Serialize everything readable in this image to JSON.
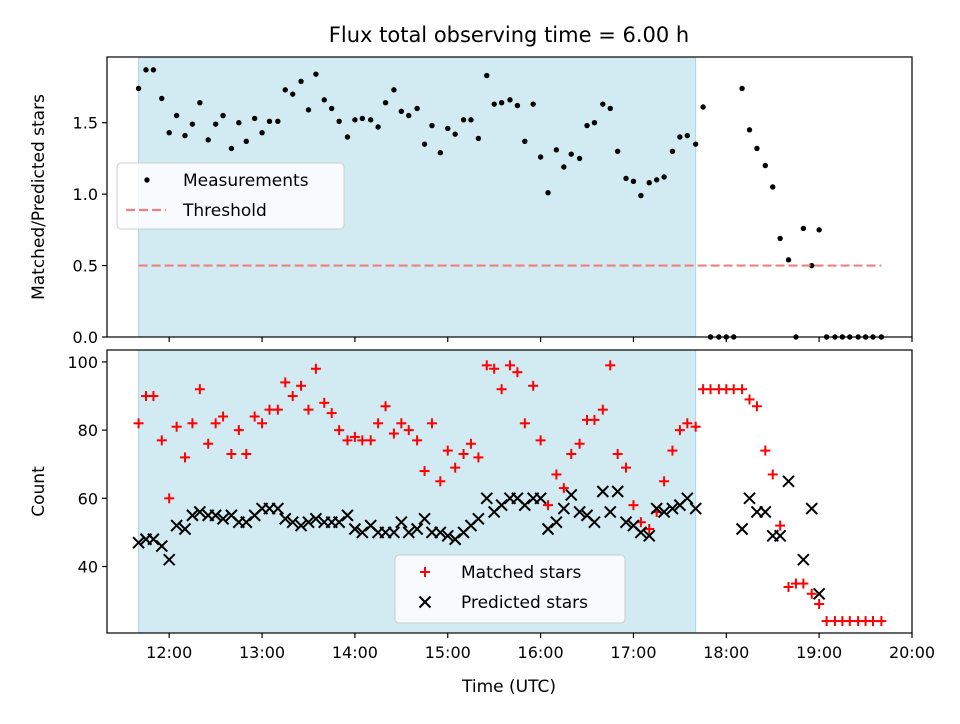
{
  "chart_data": {
    "title": "Flux total observing time = 6.00 h",
    "xlabel": "Time (UTC)",
    "x_unit": "hours UTC",
    "xlim": [
      11.33,
      20.0
    ],
    "xticks": [
      "12:00",
      "13:00",
      "14:00",
      "15:00",
      "16:00",
      "17:00",
      "18:00",
      "19:00",
      "20:00"
    ],
    "xtick_values": [
      12,
      13,
      14,
      15,
      16,
      17,
      18,
      19,
      20
    ],
    "shaded_span": [
      11.67,
      17.67
    ],
    "shade_color": "#add8e6",
    "panels": [
      {
        "type": "scatter",
        "ylabel": "Matched/Predicted stars",
        "ylim": [
          0,
          1.96
        ],
        "yticks": [
          "0.0",
          "0.5",
          "1.0",
          "1.5"
        ],
        "ytick_values": [
          0,
          0.5,
          1.0,
          1.5
        ],
        "legend_placement": "center-left",
        "series": [
          {
            "name": "Measurements",
            "marker": "dot",
            "color": "#000000",
            "x": [
              11.67,
              11.75,
              11.83,
              11.92,
              12.0,
              12.08,
              12.17,
              12.25,
              12.33,
              12.42,
              12.5,
              12.58,
              12.67,
              12.75,
              12.83,
              12.92,
              13.0,
              13.08,
              13.17,
              13.25,
              13.33,
              13.42,
              13.5,
              13.58,
              13.67,
              13.75,
              13.83,
              13.92,
              14.0,
              14.08,
              14.17,
              14.25,
              14.33,
              14.42,
              14.5,
              14.58,
              14.67,
              14.75,
              14.83,
              14.92,
              15.0,
              15.08,
              15.17,
              15.25,
              15.33,
              15.42,
              15.5,
              15.58,
              15.67,
              15.75,
              15.83,
              15.92,
              16.0,
              16.08,
              16.17,
              16.25,
              16.33,
              16.42,
              16.5,
              16.58,
              16.67,
              16.75,
              16.83,
              16.92,
              17.0,
              17.08,
              17.17,
              17.25,
              17.33,
              17.42,
              17.5,
              17.58,
              17.67,
              17.75,
              17.83,
              17.92,
              18.0,
              18.08,
              18.17,
              18.25,
              18.33,
              18.42,
              18.5,
              18.58,
              18.67,
              18.75,
              18.83,
              18.92,
              19.0,
              19.08,
              19.17,
              19.25,
              19.33,
              19.42,
              19.5,
              19.58,
              19.67
            ],
            "y": [
              1.74,
              1.87,
              1.87,
              1.67,
              1.43,
              1.55,
              1.41,
              1.49,
              1.64,
              1.38,
              1.49,
              1.55,
              1.32,
              1.5,
              1.37,
              1.53,
              1.43,
              1.51,
              1.51,
              1.73,
              1.7,
              1.79,
              1.59,
              1.84,
              1.66,
              1.6,
              1.51,
              1.4,
              1.52,
              1.53,
              1.52,
              1.47,
              1.64,
              1.73,
              1.58,
              1.55,
              1.6,
              1.35,
              1.48,
              1.29,
              1.46,
              1.42,
              1.52,
              1.52,
              1.39,
              1.83,
              1.63,
              1.64,
              1.66,
              1.62,
              1.37,
              1.63,
              1.26,
              1.01,
              1.31,
              1.19,
              1.28,
              1.25,
              1.48,
              1.5,
              1.63,
              1.6,
              1.3,
              1.11,
              1.09,
              0.99,
              1.08,
              1.1,
              1.12,
              1.3,
              1.4,
              1.41,
              1.35,
              1.61,
              0,
              0,
              0,
              0,
              1.74,
              1.45,
              1.32,
              1.2,
              1.05,
              0.69,
              0.54,
              0,
              0.76,
              0.5,
              0.75,
              0,
              0,
              0,
              0,
              0,
              0,
              0,
              0
            ]
          },
          {
            "name": "Threshold",
            "marker": "dashed-line",
            "color": "#f08080",
            "x": [
              11.67,
              19.67
            ],
            "y": [
              0.5,
              0.5
            ]
          }
        ]
      },
      {
        "type": "scatter",
        "ylabel": "Count",
        "ylim": [
          20.5,
          103.5
        ],
        "yticks": [
          "40",
          "60",
          "80",
          "100"
        ],
        "ytick_values": [
          40,
          60,
          80,
          100
        ],
        "legend_placement": "bottom-center",
        "series": [
          {
            "name": "Matched stars",
            "marker": "plus",
            "color": "#ff0000",
            "x": [
              11.67,
              11.75,
              11.83,
              11.92,
              12.0,
              12.08,
              12.17,
              12.25,
              12.33,
              12.42,
              12.5,
              12.58,
              12.67,
              12.75,
              12.83,
              12.92,
              13.0,
              13.08,
              13.17,
              13.25,
              13.33,
              13.42,
              13.5,
              13.58,
              13.67,
              13.75,
              13.83,
              13.92,
              14.0,
              14.08,
              14.17,
              14.25,
              14.33,
              14.42,
              14.5,
              14.58,
              14.67,
              14.75,
              14.83,
              14.92,
              15.0,
              15.08,
              15.17,
              15.25,
              15.33,
              15.42,
              15.5,
              15.58,
              15.67,
              15.75,
              15.83,
              15.92,
              16.0,
              16.08,
              16.17,
              16.25,
              16.33,
              16.42,
              16.5,
              16.58,
              16.67,
              16.75,
              16.83,
              16.92,
              17.0,
              17.08,
              17.17,
              17.25,
              17.33,
              17.42,
              17.5,
              17.58,
              17.67,
              17.75,
              17.83,
              17.92,
              18.0,
              18.08,
              18.17,
              18.25,
              18.33,
              18.42,
              18.5,
              18.58,
              18.67,
              18.75,
              18.83,
              18.92,
              19.0,
              19.08,
              19.17,
              19.25,
              19.33,
              19.42,
              19.5,
              19.58,
              19.67
            ],
            "y": [
              82,
              90,
              90,
              77,
              60,
              81,
              72,
              82,
              92,
              76,
              82,
              84,
              73,
              80,
              73,
              84,
              82,
              86,
              86,
              94,
              90,
              93,
              86,
              98,
              88,
              85,
              80,
              77,
              78,
              77,
              77,
              82,
              87,
              79,
              82,
              80,
              77,
              68,
              82,
              65,
              74,
              69,
              73,
              76,
              72,
              99,
              98,
              92,
              99,
              97,
              82,
              93,
              77,
              58,
              67,
              63,
              73,
              76,
              83,
              83,
              86,
              99,
              73,
              69,
              58,
              53,
              51,
              56,
              65,
              74,
              80,
              82,
              81,
              92,
              92,
              92,
              92,
              92,
              92,
              89,
              87,
              74,
              67,
              52,
              34,
              35,
              35,
              32,
              29,
              24,
              24,
              24,
              24,
              24,
              24,
              24,
              24
            ]
          },
          {
            "name": "Predicted stars",
            "marker": "x",
            "color": "#000000",
            "x": [
              11.67,
              11.75,
              11.83,
              11.92,
              12.0,
              12.08,
              12.17,
              12.25,
              12.33,
              12.42,
              12.5,
              12.58,
              12.67,
              12.75,
              12.83,
              12.92,
              13.0,
              13.08,
              13.17,
              13.25,
              13.33,
              13.42,
              13.5,
              13.58,
              13.67,
              13.75,
              13.83,
              13.92,
              14.0,
              14.08,
              14.17,
              14.25,
              14.33,
              14.42,
              14.5,
              14.58,
              14.67,
              14.75,
              14.83,
              14.92,
              15.0,
              15.08,
              15.17,
              15.25,
              15.33,
              15.42,
              15.5,
              15.58,
              15.67,
              15.75,
              15.83,
              15.92,
              16.0,
              16.08,
              16.17,
              16.25,
              16.33,
              16.42,
              16.5,
              16.58,
              16.67,
              16.75,
              16.83,
              16.92,
              17.0,
              17.08,
              17.17,
              17.25,
              17.33,
              17.42,
              17.5,
              17.58,
              17.67,
              18.17,
              18.25,
              18.33,
              18.42,
              18.5,
              18.58,
              18.67,
              18.83,
              18.92,
              19.0
            ],
            "y": [
              47,
              48,
              48,
              46,
              42,
              52,
              51,
              55,
              56,
              55,
              55,
              54,
              55,
              53,
              53,
              55,
              57,
              57,
              57,
              54,
              53,
              52,
              53,
              54,
              53,
              53,
              53,
              55,
              51,
              50,
              52,
              50,
              50,
              50,
              53,
              50,
              51,
              54,
              50,
              50,
              49,
              48,
              50,
              52,
              54,
              60,
              56,
              58,
              60,
              60,
              58,
              60,
              60,
              51,
              53,
              57,
              61,
              56,
              55,
              53,
              62,
              56,
              62,
              53,
              52,
              50,
              49,
              57,
              56,
              57,
              58,
              60,
              57,
              51,
              60,
              56,
              56,
              49,
              49,
              65,
              42,
              57,
              32
            ]
          }
        ]
      }
    ]
  }
}
